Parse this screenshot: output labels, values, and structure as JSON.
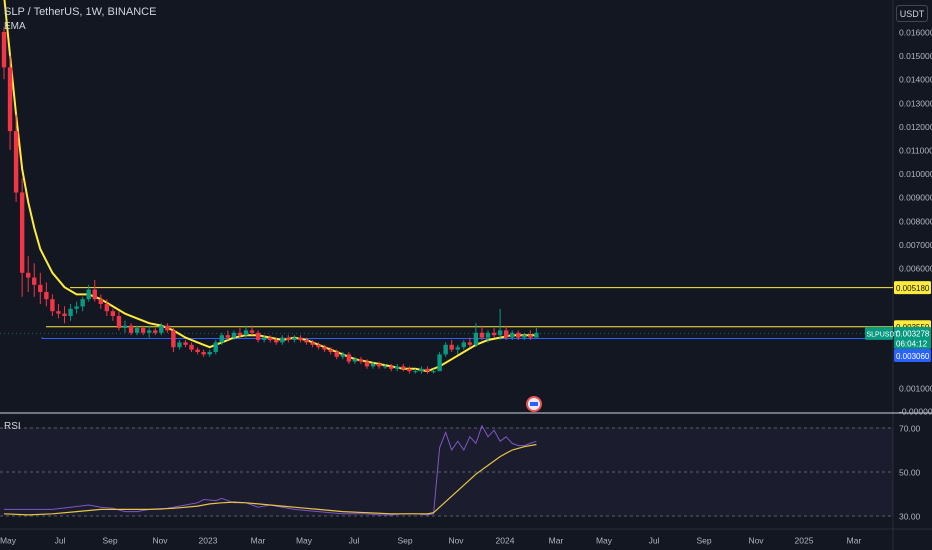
{
  "header": {
    "symbol_title": "SLP / TetherUS, 1W, BINANCE",
    "ema_label": "EMA",
    "currency": "USDT"
  },
  "price_axis": {
    "ticks": [
      "0.016000",
      "0.015000",
      "0.014000",
      "0.013000",
      "0.012000",
      "0.011000",
      "0.010000",
      "0.009000",
      "0.008000",
      "0.007000",
      "0.006000",
      "0.001000",
      "-0.000000"
    ],
    "tick_values": [
      0.016,
      0.015,
      0.014,
      0.013,
      0.012,
      0.011,
      0.01,
      0.009,
      0.008,
      0.007,
      0.006,
      0.001,
      0.0
    ]
  },
  "price_lines": {
    "resistance_high": {
      "value": 0.00518,
      "label": "0.005180",
      "color": "#ffeb3b"
    },
    "resistance_low": {
      "value": 0.00355,
      "label": "0.003550",
      "color": "#ffeb3b"
    },
    "support": {
      "value": 0.00306,
      "label": "0.003060",
      "color": "#2962ff"
    },
    "last_price": {
      "value": 0.003278,
      "label": "0.003278",
      "symbol": "SLPUSDT",
      "countdown": "06:04:12",
      "color": "#089981"
    }
  },
  "rsi": {
    "label": "RSI",
    "ticks": [
      "70.00",
      "50.00",
      "30.00"
    ],
    "tick_values": [
      70,
      50,
      30
    ],
    "band": [
      30,
      70
    ]
  },
  "time_axis": {
    "labels": [
      "May",
      "Jul",
      "Sep",
      "Nov",
      "2023",
      "Mar",
      "May",
      "Jul",
      "Sep",
      "Nov",
      "2024",
      "Mar",
      "May",
      "Jul",
      "Sep",
      "Nov",
      "2025",
      "Mar"
    ]
  },
  "colors": {
    "up": "#089981",
    "down": "#f23645",
    "ema": "#ffeb3b",
    "rsi_line": "#7e57c2",
    "rsi_ma": "#e8c547",
    "background": "#131722"
  },
  "chart_data": [
    {
      "type": "candlestick",
      "title": "SLP / TetherUS, 1W, BINANCE",
      "x_unit": "weeks from start",
      "y_unit": "USDT",
      "ylim": [
        -0.0005,
        0.0168
      ],
      "candles": [
        [
          0,
          0.016,
          0.0162,
          0.014,
          0.0145
        ],
        [
          1,
          0.0145,
          0.015,
          0.011,
          0.0118
        ],
        [
          2,
          0.0118,
          0.0125,
          0.0088,
          0.0092
        ],
        [
          3,
          0.0092,
          0.0098,
          0.0048,
          0.0058
        ],
        [
          4,
          0.0058,
          0.0065,
          0.005,
          0.0056
        ],
        [
          5,
          0.0056,
          0.0062,
          0.0048,
          0.0053
        ],
        [
          6,
          0.0053,
          0.0058,
          0.0045,
          0.005
        ],
        [
          7,
          0.005,
          0.0054,
          0.0044,
          0.0047
        ],
        [
          8,
          0.0047,
          0.0049,
          0.004,
          0.0042
        ],
        [
          9,
          0.0042,
          0.0045,
          0.0039,
          0.0041
        ],
        [
          10,
          0.0041,
          0.0044,
          0.0037,
          0.004
        ],
        [
          11,
          0.004,
          0.0045,
          0.0038,
          0.0043
        ],
        [
          12,
          0.0043,
          0.0046,
          0.0041,
          0.0044
        ],
        [
          13,
          0.0044,
          0.0048,
          0.0042,
          0.0047
        ],
        [
          14,
          0.0047,
          0.0053,
          0.0046,
          0.0051
        ],
        [
          15,
          0.0051,
          0.0055,
          0.0046,
          0.0047
        ],
        [
          16,
          0.0047,
          0.0049,
          0.0043,
          0.0045
        ],
        [
          17,
          0.0045,
          0.0047,
          0.004,
          0.0042
        ],
        [
          18,
          0.0042,
          0.0043,
          0.0038,
          0.004
        ],
        [
          19,
          0.004,
          0.0042,
          0.0034,
          0.0035
        ],
        [
          20,
          0.0035,
          0.0038,
          0.0033,
          0.0036
        ],
        [
          21,
          0.0036,
          0.0037,
          0.0032,
          0.0033
        ],
        [
          22,
          0.0033,
          0.0036,
          0.0032,
          0.0035
        ],
        [
          23,
          0.0035,
          0.0036,
          0.0032,
          0.0033
        ],
        [
          24,
          0.0033,
          0.0036,
          0.0031,
          0.0034
        ],
        [
          25,
          0.0034,
          0.0035,
          0.0032,
          0.0033
        ],
        [
          26,
          0.0033,
          0.0037,
          0.0032,
          0.0036
        ],
        [
          27,
          0.0036,
          0.0037,
          0.0033,
          0.0034
        ],
        [
          28,
          0.0034,
          0.0035,
          0.0025,
          0.0027
        ],
        [
          29,
          0.0027,
          0.003,
          0.0026,
          0.0029
        ],
        [
          30,
          0.0029,
          0.003,
          0.0027,
          0.0028
        ],
        [
          31,
          0.0028,
          0.0029,
          0.0025,
          0.0026
        ],
        [
          32,
          0.0026,
          0.0027,
          0.0024,
          0.0025
        ],
        [
          33,
          0.0025,
          0.0026,
          0.0023,
          0.0024
        ],
        [
          34,
          0.0024,
          0.0026,
          0.0023,
          0.0025
        ],
        [
          35,
          0.0025,
          0.003,
          0.0024,
          0.0029
        ],
        [
          36,
          0.0029,
          0.0033,
          0.0028,
          0.0032
        ],
        [
          37,
          0.0032,
          0.0034,
          0.003,
          0.0031
        ],
        [
          38,
          0.0031,
          0.0034,
          0.003,
          0.0033
        ],
        [
          39,
          0.0033,
          0.0035,
          0.0031,
          0.0032
        ],
        [
          40,
          0.0032,
          0.0036,
          0.0031,
          0.0034
        ],
        [
          41,
          0.0034,
          0.0036,
          0.0032,
          0.0033
        ],
        [
          42,
          0.0033,
          0.0034,
          0.0029,
          0.003
        ],
        [
          43,
          0.003,
          0.0032,
          0.0029,
          0.0031
        ],
        [
          44,
          0.0031,
          0.0032,
          0.0029,
          0.003
        ],
        [
          45,
          0.003,
          0.0031,
          0.0028,
          0.0029
        ],
        [
          46,
          0.0029,
          0.0032,
          0.0028,
          0.0031
        ],
        [
          47,
          0.0031,
          0.0032,
          0.0029,
          0.003
        ],
        [
          48,
          0.003,
          0.0032,
          0.0029,
          0.0031
        ],
        [
          49,
          0.0031,
          0.0032,
          0.0029,
          0.003
        ],
        [
          50,
          0.003,
          0.0031,
          0.0028,
          0.0029
        ],
        [
          51,
          0.0029,
          0.003,
          0.0027,
          0.0028
        ],
        [
          52,
          0.0028,
          0.0029,
          0.0026,
          0.0027
        ],
        [
          53,
          0.0027,
          0.0028,
          0.0025,
          0.0026
        ],
        [
          54,
          0.0026,
          0.0027,
          0.0024,
          0.0025
        ],
        [
          55,
          0.0025,
          0.0026,
          0.0022,
          0.0023
        ],
        [
          56,
          0.0023,
          0.0025,
          0.0022,
          0.0024
        ],
        [
          57,
          0.0024,
          0.0025,
          0.002,
          0.0021
        ],
        [
          58,
          0.0021,
          0.0023,
          0.002,
          0.0022
        ],
        [
          59,
          0.0022,
          0.0023,
          0.002,
          0.0021
        ],
        [
          60,
          0.0021,
          0.0022,
          0.0018,
          0.0019
        ],
        [
          61,
          0.0019,
          0.0021,
          0.0018,
          0.002
        ],
        [
          62,
          0.002,
          0.0021,
          0.0018,
          0.0019
        ],
        [
          63,
          0.0019,
          0.002,
          0.0018,
          0.0019
        ],
        [
          64,
          0.0019,
          0.002,
          0.0017,
          0.0018
        ],
        [
          65,
          0.0018,
          0.002,
          0.0017,
          0.0019
        ],
        [
          66,
          0.0019,
          0.002,
          0.0017,
          0.0018
        ],
        [
          67,
          0.0018,
          0.0019,
          0.0016,
          0.0017
        ],
        [
          68,
          0.0017,
          0.0018,
          0.0016,
          0.0017
        ],
        [
          69,
          0.0017,
          0.0019,
          0.0016,
          0.0018
        ],
        [
          70,
          0.0018,
          0.0019,
          0.0016,
          0.0017
        ],
        [
          71,
          0.0017,
          0.0018,
          0.0016,
          0.0017
        ],
        [
          72,
          0.0017,
          0.0025,
          0.0017,
          0.0024
        ],
        [
          73,
          0.0024,
          0.0029,
          0.0023,
          0.0028
        ],
        [
          74,
          0.0028,
          0.003,
          0.0025,
          0.0026
        ],
        [
          75,
          0.0026,
          0.0028,
          0.0024,
          0.0027
        ],
        [
          76,
          0.0027,
          0.003,
          0.0026,
          0.0029
        ],
        [
          77,
          0.0029,
          0.0031,
          0.0027,
          0.0028
        ],
        [
          78,
          0.0028,
          0.0037,
          0.0027,
          0.0033
        ],
        [
          79,
          0.0033,
          0.0036,
          0.003,
          0.0031
        ],
        [
          80,
          0.0031,
          0.0034,
          0.0029,
          0.0033
        ],
        [
          81,
          0.0033,
          0.0035,
          0.0031,
          0.0032
        ],
        [
          82,
          0.0032,
          0.0043,
          0.003,
          0.0034
        ],
        [
          83,
          0.0034,
          0.0036,
          0.003,
          0.0031
        ],
        [
          84,
          0.0031,
          0.0034,
          0.003,
          0.0033
        ],
        [
          85,
          0.0033,
          0.0034,
          0.003,
          0.0031
        ],
        [
          86,
          0.0031,
          0.0033,
          0.003,
          0.0032
        ],
        [
          87,
          0.0032,
          0.0034,
          0.003,
          0.0031
        ],
        [
          88,
          0.0031,
          0.0035,
          0.0031,
          0.0033
        ]
      ],
      "ema": [
        [
          0,
          0.018
        ],
        [
          1,
          0.015
        ],
        [
          2,
          0.0125
        ],
        [
          3,
          0.0102
        ],
        [
          4,
          0.0088
        ],
        [
          5,
          0.0077
        ],
        [
          6,
          0.0068
        ],
        [
          8,
          0.0058
        ],
        [
          10,
          0.0052
        ],
        [
          12,
          0.0049
        ],
        [
          14,
          0.0049
        ],
        [
          16,
          0.0047
        ],
        [
          18,
          0.0044
        ],
        [
          20,
          0.0041
        ],
        [
          22,
          0.0039
        ],
        [
          24,
          0.0037
        ],
        [
          26,
          0.0036
        ],
        [
          28,
          0.0034
        ],
        [
          30,
          0.0031
        ],
        [
          32,
          0.0029
        ],
        [
          34,
          0.0027
        ],
        [
          36,
          0.0029
        ],
        [
          38,
          0.0031
        ],
        [
          40,
          0.0032
        ],
        [
          42,
          0.0032
        ],
        [
          44,
          0.0031
        ],
        [
          46,
          0.003
        ],
        [
          48,
          0.0031
        ],
        [
          50,
          0.003
        ],
        [
          52,
          0.0028
        ],
        [
          54,
          0.0026
        ],
        [
          56,
          0.0024
        ],
        [
          58,
          0.0022
        ],
        [
          60,
          0.0021
        ],
        [
          62,
          0.002
        ],
        [
          64,
          0.0019
        ],
        [
          66,
          0.0018
        ],
        [
          68,
          0.0018
        ],
        [
          70,
          0.0017
        ],
        [
          72,
          0.0019
        ],
        [
          74,
          0.0022
        ],
        [
          76,
          0.0025
        ],
        [
          78,
          0.0028
        ],
        [
          80,
          0.003
        ],
        [
          82,
          0.0031
        ],
        [
          84,
          0.0032
        ],
        [
          86,
          0.0032
        ],
        [
          88,
          0.0032
        ]
      ]
    },
    {
      "type": "line",
      "title": "RSI",
      "ylim": [
        24,
        73
      ],
      "series": [
        {
          "name": "RSI",
          "points": [
            [
              0,
              33
            ],
            [
              4,
              33
            ],
            [
              8,
              33
            ],
            [
              11,
              34
            ],
            [
              14,
              35
            ],
            [
              16,
              34
            ],
            [
              18,
              33.5
            ],
            [
              20,
              32
            ],
            [
              22,
              32
            ],
            [
              24,
              33
            ],
            [
              26,
              33
            ],
            [
              28,
              34
            ],
            [
              30,
              35
            ],
            [
              32,
              36
            ],
            [
              33,
              37.5
            ],
            [
              35,
              37
            ],
            [
              36,
              38
            ],
            [
              38,
              36
            ],
            [
              40,
              36
            ],
            [
              42,
              34
            ],
            [
              44,
              35
            ],
            [
              46,
              34
            ],
            [
              48,
              33
            ],
            [
              50,
              32.5
            ],
            [
              52,
              32
            ],
            [
              54,
              31.5
            ],
            [
              56,
              31
            ],
            [
              58,
              31
            ],
            [
              60,
              31
            ],
            [
              62,
              30.5
            ],
            [
              64,
              30.5
            ],
            [
              66,
              31
            ],
            [
              68,
              31
            ],
            [
              70,
              30.5
            ],
            [
              71,
              31
            ],
            [
              72,
              61
            ],
            [
              73,
              68
            ],
            [
              74,
              60
            ],
            [
              75,
              64
            ],
            [
              76,
              60
            ],
            [
              77,
              66
            ],
            [
              78,
              63
            ],
            [
              79,
              71
            ],
            [
              80,
              66
            ],
            [
              81,
              69
            ],
            [
              82,
              64
            ],
            [
              83,
              66
            ],
            [
              84,
              63
            ],
            [
              85,
              62
            ],
            [
              86,
              62
            ],
            [
              87,
              63
            ],
            [
              88,
              64
            ]
          ]
        },
        {
          "name": "RSI-based MA",
          "points": [
            [
              0,
              31
            ],
            [
              4,
              30.5
            ],
            [
              8,
              31
            ],
            [
              12,
              32
            ],
            [
              16,
              33
            ],
            [
              20,
              33
            ],
            [
              24,
              33
            ],
            [
              28,
              33.5
            ],
            [
              32,
              34.5
            ],
            [
              34,
              35.5
            ],
            [
              36,
              36
            ],
            [
              38,
              36.3
            ],
            [
              40,
              36
            ],
            [
              42,
              35.5
            ],
            [
              44,
              35
            ],
            [
              46,
              34.5
            ],
            [
              48,
              34
            ],
            [
              50,
              33.5
            ],
            [
              52,
              33
            ],
            [
              56,
              32
            ],
            [
              60,
              31.5
            ],
            [
              64,
              31
            ],
            [
              68,
              31
            ],
            [
              70,
              31
            ],
            [
              71,
              31.5
            ],
            [
              72,
              34
            ],
            [
              74,
              39
            ],
            [
              76,
              44
            ],
            [
              78,
              49
            ],
            [
              80,
              53
            ],
            [
              82,
              57
            ],
            [
              84,
              60
            ],
            [
              86,
              61.5
            ],
            [
              88,
              62.5
            ]
          ]
        }
      ]
    }
  ]
}
